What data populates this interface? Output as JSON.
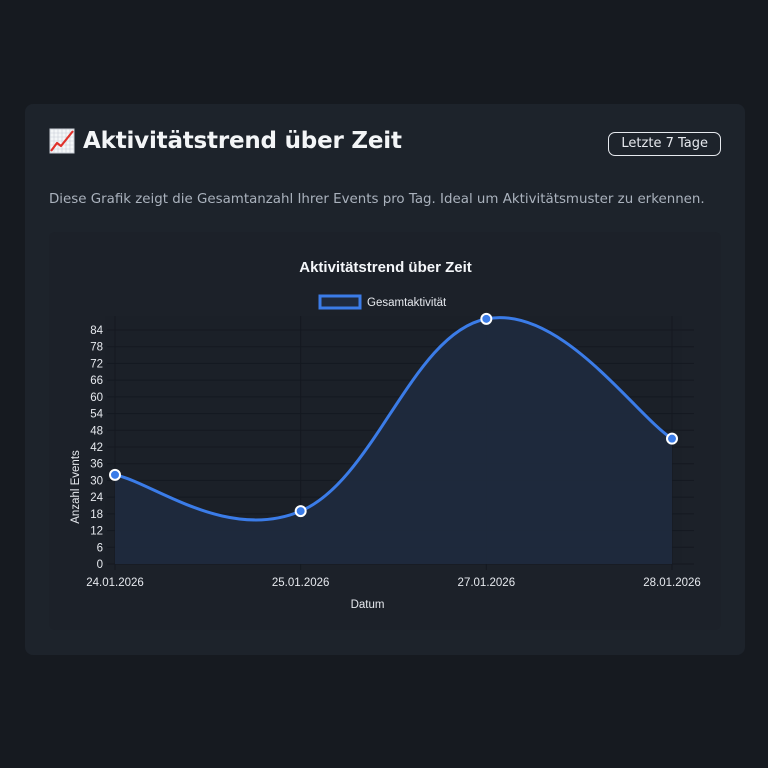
{
  "card": {
    "title": "Aktivitätstrend über Zeit",
    "title_icon": "chart-increasing-icon",
    "range_badge": "Letzte 7 Tage",
    "description": "Diese Grafik zeigt die Gesamtanzahl Ihrer Events pro Tag. Ideal um Aktivitätsmuster zu erkennen."
  },
  "colors": {
    "page_bg": "#161a20",
    "card_bg": "#1d232b",
    "line": "#3b7ce8",
    "fill": "#1f2a3d",
    "grid": "#141820",
    "text": "#e6e9ee"
  },
  "chart_data": {
    "type": "line",
    "title": "Aktivitätstrend über Zeit",
    "xlabel": "Datum",
    "ylabel": "Anzahl Events",
    "categories": [
      "24.01.2026",
      "25.01.2026",
      "27.01.2026",
      "28.01.2026"
    ],
    "series": [
      {
        "name": "Gesamtaktivität",
        "values": [
          32,
          19,
          88,
          45
        ]
      }
    ],
    "yticks": [
      0,
      6,
      12,
      18,
      24,
      30,
      36,
      42,
      48,
      54,
      60,
      66,
      72,
      78,
      84
    ],
    "ylim": [
      0,
      84
    ],
    "grid": true,
    "legend_position": "top",
    "curve": "smooth",
    "filled": true
  }
}
